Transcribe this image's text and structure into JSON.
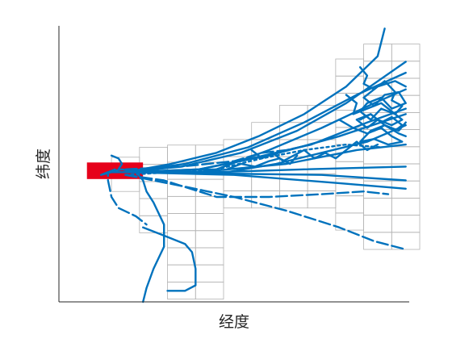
{
  "chart_data": {
    "type": "line",
    "title": "",
    "xlabel": "经度",
    "ylabel": "纬度",
    "xlim": [
      0,
      100
    ],
    "ylim": [
      0,
      100
    ],
    "grid": false,
    "tick_labels": "none",
    "colors": {
      "track": "#0072BD",
      "region": "#e6001a",
      "cells": "#b3b3b3",
      "axis": "#262626"
    },
    "highlight_region": {
      "x": [
        8,
        24
      ],
      "y": [
        44.5,
        50.5
      ]
    },
    "grid_cells": {
      "cell_size": [
        8,
        6.2
      ],
      "columns": [
        {
          "x0": 15,
          "y0": 40,
          "y1": 57
        },
        {
          "x0": 23,
          "y0": 25,
          "y1": 57
        },
        {
          "x0": 31,
          "y0": 1,
          "y1": 57
        },
        {
          "x0": 39,
          "y0": 1,
          "y1": 57
        },
        {
          "x0": 47,
          "y0": 34,
          "y1": 63
        },
        {
          "x0": 55,
          "y0": 34,
          "y1": 70
        },
        {
          "x0": 63,
          "y0": 34,
          "y1": 76
        },
        {
          "x0": 71,
          "y0": 34,
          "y1": 76
        },
        {
          "x0": 79,
          "y0": 26,
          "y1": 89
        },
        {
          "x0": 87,
          "y0": 19,
          "y1": 95
        },
        {
          "x0": 95,
          "y0": 19,
          "y1": 95
        }
      ]
    },
    "series": [
      {
        "style": "solid",
        "points": [
          [
            19,
            47
          ],
          [
            32,
            50
          ],
          [
            45,
            54
          ],
          [
            57,
            60
          ],
          [
            70,
            68
          ],
          [
            82,
            78
          ],
          [
            91,
            89
          ],
          [
            93,
            99
          ]
        ]
      },
      {
        "style": "solid",
        "points": [
          [
            19,
            47
          ],
          [
            35,
            49
          ],
          [
            52,
            54
          ],
          [
            68,
            62
          ],
          [
            82,
            72
          ],
          [
            99,
            87
          ]
        ]
      },
      {
        "style": "solid",
        "points": [
          [
            19,
            47
          ],
          [
            36,
            50
          ],
          [
            54,
            56
          ],
          [
            70,
            65
          ],
          [
            85,
            75
          ],
          [
            99,
            83
          ]
        ]
      },
      {
        "style": "solid",
        "points": [
          [
            19,
            47
          ],
          [
            40,
            48
          ],
          [
            60,
            53
          ],
          [
            80,
            60
          ],
          [
            99,
            68
          ]
        ]
      },
      {
        "style": "solid",
        "points": [
          [
            19,
            47
          ],
          [
            40,
            47
          ],
          [
            65,
            50
          ],
          [
            85,
            55
          ],
          [
            99,
            57
          ]
        ]
      },
      {
        "style": "solid",
        "points": [
          [
            19,
            47
          ],
          [
            45,
            47
          ],
          [
            70,
            48
          ],
          [
            99,
            49
          ]
        ]
      },
      {
        "style": "solid",
        "points": [
          [
            19,
            47
          ],
          [
            45,
            46.5
          ],
          [
            75,
            46
          ],
          [
            99,
            44
          ]
        ]
      },
      {
        "style": "solid",
        "points": [
          [
            19,
            47
          ],
          [
            50,
            46
          ],
          [
            80,
            43
          ],
          [
            99,
            41
          ]
        ]
      },
      {
        "style": "solid",
        "points": [
          [
            19,
            47
          ],
          [
            45,
            48
          ],
          [
            60,
            55
          ],
          [
            75,
            63
          ],
          [
            90,
            72
          ],
          [
            99,
            77
          ]
        ]
      },
      {
        "style": "solid",
        "points": [
          [
            19,
            47
          ],
          [
            40,
            48
          ],
          [
            55,
            52
          ],
          [
            72,
            57
          ],
          [
            88,
            65
          ],
          [
            99,
            70
          ]
        ]
      },
      {
        "style": "solid",
        "points": [
          [
            19,
            47
          ],
          [
            48,
            47
          ],
          [
            62,
            50
          ],
          [
            75,
            54
          ],
          [
            88,
            58
          ],
          [
            99,
            64
          ]
        ]
      },
      {
        "style": "dashed",
        "points": [
          [
            19,
            46
          ],
          [
            35,
            42
          ],
          [
            50,
            38
          ],
          [
            65,
            33
          ],
          [
            80,
            27
          ],
          [
            90,
            22
          ],
          [
            99,
            19
          ]
        ]
      },
      {
        "style": "dashed",
        "points": [
          [
            19,
            46
          ],
          [
            30,
            44
          ],
          [
            45,
            38
          ],
          [
            60,
            38
          ],
          [
            75,
            39
          ],
          [
            87,
            40
          ],
          [
            94,
            39
          ]
        ]
      },
      {
        "style": "dashed",
        "points": [
          [
            19,
            48
          ],
          [
            35,
            49
          ],
          [
            50,
            51
          ],
          [
            58,
            54
          ],
          [
            65,
            55
          ],
          [
            72,
            57
          ]
        ]
      },
      {
        "style": "dotted",
        "points": [
          [
            19,
            46
          ],
          [
            32,
            47
          ],
          [
            45,
            48
          ],
          [
            58,
            52
          ],
          [
            70,
            55
          ],
          [
            82,
            57
          ],
          [
            92,
            56
          ]
        ]
      },
      {
        "style": "solid",
        "points": [
          [
            19,
            47
          ],
          [
            15,
            47
          ],
          [
            12,
            46
          ],
          [
            14,
            47
          ],
          [
            18,
            48
          ],
          [
            22,
            47
          ],
          [
            24,
            44
          ],
          [
            25,
            40
          ],
          [
            27,
            36
          ],
          [
            30,
            28
          ],
          [
            30,
            20
          ],
          [
            27,
            12
          ],
          [
            25,
            5
          ],
          [
            24,
            0
          ]
        ]
      },
      {
        "style": "solid",
        "points": [
          [
            24,
            27
          ],
          [
            30,
            24
          ],
          [
            36,
            21
          ],
          [
            38,
            18
          ],
          [
            39,
            12
          ],
          [
            39,
            6
          ],
          [
            36,
            4
          ],
          [
            31,
            4
          ]
        ]
      },
      {
        "style": "dashed",
        "points": [
          [
            16,
            48
          ],
          [
            14,
            47
          ],
          [
            14,
            44
          ],
          [
            15,
            38
          ],
          [
            17,
            34
          ],
          [
            22,
            31
          ],
          [
            25,
            28
          ]
        ]
      },
      {
        "style": "solid",
        "points": [
          [
            15,
            53
          ],
          [
            17,
            52
          ],
          [
            18,
            50
          ],
          [
            17,
            48
          ]
        ]
      },
      {
        "style": "solid",
        "points": [
          [
            86,
            85
          ],
          [
            88,
            82
          ],
          [
            87,
            79
          ],
          [
            90,
            77
          ],
          [
            93,
            80
          ],
          [
            96,
            76
          ],
          [
            95,
            73
          ],
          [
            98,
            71
          ],
          [
            96,
            68
          ],
          [
            92,
            70
          ],
          [
            89,
            66
          ],
          [
            86,
            69
          ],
          [
            88,
            72
          ],
          [
            92,
            74
          ],
          [
            95,
            70
          ],
          [
            99,
            72
          ],
          [
            97,
            76
          ],
          [
            93,
            75
          ],
          [
            90,
            71
          ],
          [
            87,
            74
          ],
          [
            91,
            78
          ],
          [
            96,
            80
          ],
          [
            99,
            78
          ]
        ]
      },
      {
        "style": "solid",
        "points": [
          [
            82,
            75
          ],
          [
            85,
            72
          ],
          [
            84,
            68
          ],
          [
            88,
            70
          ],
          [
            92,
            72
          ],
          [
            95,
            69
          ],
          [
            98,
            66
          ],
          [
            95,
            64
          ],
          [
            91,
            66
          ],
          [
            88,
            63
          ],
          [
            85,
            66
          ],
          [
            89,
            68
          ],
          [
            93,
            64
          ],
          [
            97,
            62
          ],
          [
            99,
            65
          ]
        ]
      },
      {
        "style": "solid",
        "points": [
          [
            80,
            66
          ],
          [
            84,
            63
          ],
          [
            88,
            61
          ],
          [
            92,
            63
          ],
          [
            95,
            60
          ],
          [
            98,
            58
          ],
          [
            94,
            57
          ],
          [
            90,
            59
          ],
          [
            86,
            58
          ],
          [
            89,
            62
          ],
          [
            93,
            64
          ],
          [
            97,
            61
          ],
          [
            99,
            60
          ]
        ]
      },
      {
        "style": "solid",
        "points": [
          [
            55,
            55
          ],
          [
            58,
            52
          ],
          [
            61,
            54
          ],
          [
            64,
            51
          ],
          [
            67,
            53
          ],
          [
            70,
            55
          ],
          [
            73,
            52
          ],
          [
            76,
            54
          ],
          [
            79,
            52
          ],
          [
            82,
            55
          ],
          [
            85,
            58
          ],
          [
            88,
            55
          ],
          [
            91,
            57
          ]
        ]
      },
      {
        "style": "solid",
        "points": [
          [
            48,
            48
          ],
          [
            52,
            50
          ],
          [
            56,
            49
          ],
          [
            60,
            51
          ],
          [
            63,
            52
          ],
          [
            66,
            50
          ],
          [
            68,
            53
          ]
        ]
      },
      {
        "style": "solid",
        "points": [
          [
            86,
            66
          ],
          [
            89,
            68
          ],
          [
            92,
            65
          ],
          [
            95,
            67
          ],
          [
            98,
            64
          ],
          [
            96,
            62
          ],
          [
            93,
            64
          ],
          [
            90,
            62
          ]
        ]
      }
    ]
  }
}
